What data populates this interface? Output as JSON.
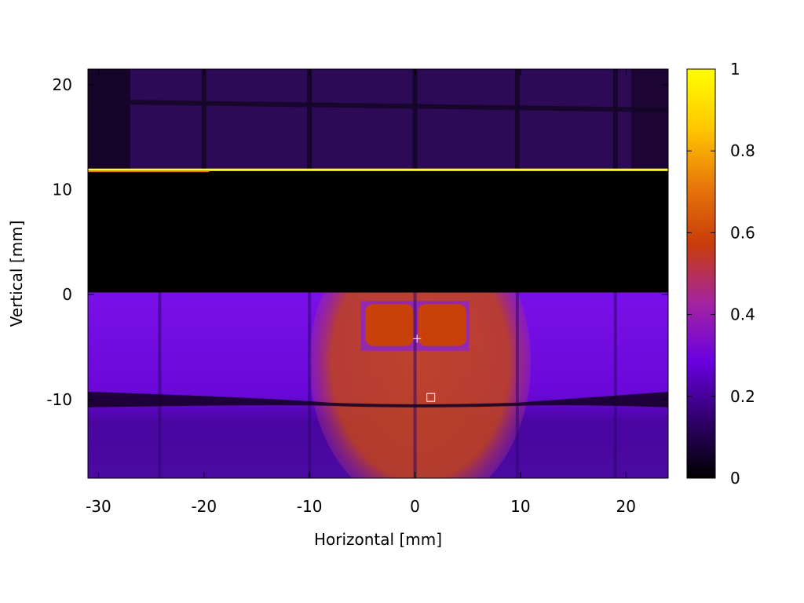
{
  "chart_data": {
    "type": "heatmap",
    "title": "",
    "xlabel": "Horizontal [mm]",
    "ylabel": "Vertical [mm]",
    "xlim": [
      -31.0,
      24.0
    ],
    "ylim": [
      -17.5,
      21.5
    ],
    "xticks": [
      -30,
      -20,
      -10,
      0,
      10,
      20
    ],
    "yticks": [
      -10,
      0,
      10,
      20
    ],
    "colorbar": {
      "range": [
        0,
        1
      ],
      "ticks": [
        0,
        0.2,
        0.4,
        0.6,
        0.8,
        1
      ],
      "tick_labels": [
        "0",
        "0.2",
        "0.4",
        "0.6",
        "0.8",
        "1"
      ],
      "colormap": [
        "#000000",
        "#30006a",
        "#6a00e0",
        "#a424a0",
        "#c83c0a",
        "#e8780a",
        "#ffc800",
        "#ffff00"
      ]
    },
    "regions": {
      "upper_band": {
        "y": [
          12.0,
          21.5
        ],
        "value": 0.12
      },
      "bright_line": {
        "y": 11.9,
        "value": 0.98
      },
      "dark_band": {
        "y": [
          0.2,
          11.8
        ],
        "value": 0.0
      },
      "lower_field": {
        "y": [
          -17.5,
          0.2
        ],
        "value": 0.28
      },
      "central_ellipse": {
        "center": [
          0.5,
          -6.5
        ],
        "radii": [
          10.5,
          14.0
        ],
        "value": 0.45
      },
      "central_core": {
        "x": [
          -5.0,
          5.0
        ],
        "y": [
          -5.2,
          -1.2
        ],
        "value": 0.55
      },
      "dark_seam": {
        "y": -10.3,
        "value": 0.05
      }
    },
    "markers": [
      {
        "name": "cross-marker",
        "symbol": "plus",
        "x": 0.2,
        "y": -4.2
      },
      {
        "name": "square-marker",
        "symbol": "square",
        "x": 1.5,
        "y": -9.8
      }
    ],
    "grid": false,
    "legend": "colorbar-right"
  }
}
